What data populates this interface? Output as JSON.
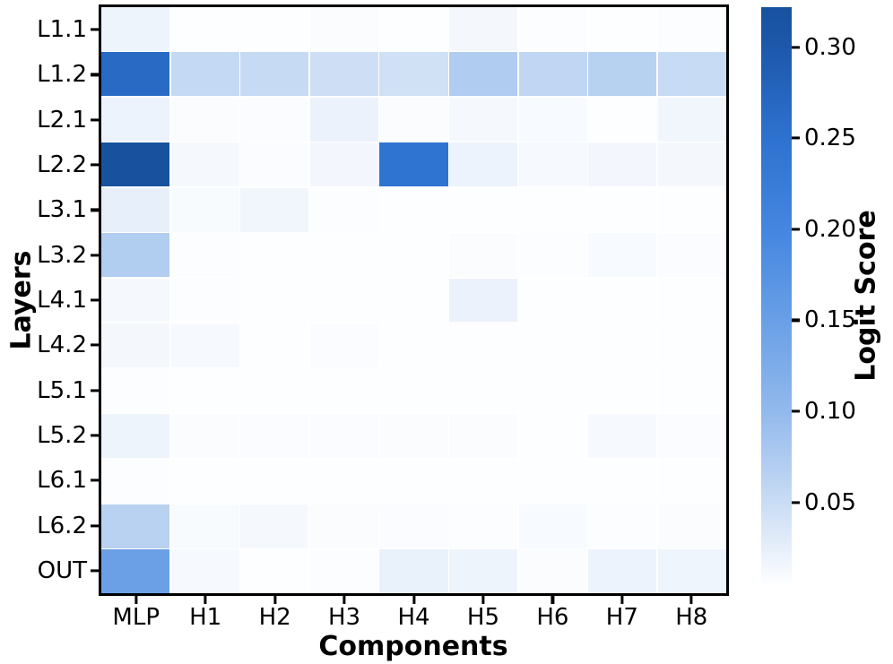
{
  "figure": {
    "background": "#ffffff"
  },
  "chart_data": {
    "type": "heatmap",
    "title": "",
    "xlabel": "Components",
    "ylabel": "Layers",
    "columns": [
      "MLP",
      "H1",
      "H2",
      "H3",
      "H4",
      "H5",
      "H6",
      "H7",
      "H8"
    ],
    "rows": [
      "L1.1",
      "L1.2",
      "L2.1",
      "L2.2",
      "L3.1",
      "L3.2",
      "L4.1",
      "L4.2",
      "L5.1",
      "L5.2",
      "L6.1",
      "L6.2",
      "OUT"
    ],
    "values": [
      [
        0.018,
        0.003,
        0.005,
        0.008,
        0.003,
        0.013,
        0.006,
        0.004,
        0.006
      ],
      [
        0.265,
        0.055,
        0.053,
        0.046,
        0.044,
        0.073,
        0.058,
        0.066,
        0.052
      ],
      [
        0.019,
        0.008,
        0.007,
        0.021,
        0.008,
        0.012,
        0.01,
        0.002,
        0.016
      ],
      [
        0.32,
        0.012,
        0.007,
        0.014,
        0.245,
        0.019,
        0.011,
        0.014,
        0.013
      ],
      [
        0.025,
        0.009,
        0.015,
        0.006,
        0.005,
        0.002,
        0.002,
        0.004,
        0.004
      ],
      [
        0.072,
        0.006,
        0.002,
        0.002,
        0.002,
        0.008,
        0.006,
        0.01,
        0.007
      ],
      [
        0.012,
        0.006,
        0.002,
        0.002,
        0.002,
        0.021,
        0.005,
        0.003,
        0.004
      ],
      [
        0.013,
        0.011,
        0.002,
        0.007,
        0.002,
        0.002,
        0.002,
        0.005,
        0.005
      ],
      [
        0.006,
        0.002,
        0.005,
        0.002,
        0.002,
        0.002,
        0.002,
        0.002,
        0.002
      ],
      [
        0.018,
        0.008,
        0.007,
        0.007,
        0.008,
        0.008,
        0.004,
        0.011,
        0.007
      ],
      [
        0.006,
        0.002,
        0.004,
        0.005,
        0.004,
        0.003,
        0.004,
        0.003,
        0.004
      ],
      [
        0.065,
        0.009,
        0.012,
        0.008,
        0.007,
        0.006,
        0.01,
        0.006,
        0.008
      ],
      [
        0.148,
        0.011,
        0.004,
        0.006,
        0.022,
        0.018,
        0.008,
        0.019,
        0.017
      ]
    ],
    "colorbar": {
      "label": "Logit Score",
      "tick_values": [
        0.3,
        0.25,
        0.2,
        0.15,
        0.1,
        0.05
      ],
      "tick_labels": [
        "0.30",
        "0.25",
        "0.20",
        "0.15",
        "0.10",
        "0.05"
      ],
      "vmin": 0.005,
      "vmax": 0.322
    },
    "colormap_stops": [
      {
        "v": 0.005,
        "color": "#fdfeff"
      },
      {
        "v": 0.05,
        "color": "#c9dcf4"
      },
      {
        "v": 0.1,
        "color": "#92b9ec"
      },
      {
        "v": 0.15,
        "color": "#699fe6"
      },
      {
        "v": 0.2,
        "color": "#4486e0"
      },
      {
        "v": 0.25,
        "color": "#2e72cf"
      },
      {
        "v": 0.3,
        "color": "#1d58ab"
      },
      {
        "v": 0.322,
        "color": "#17519e"
      }
    ],
    "layout": {
      "grid": false,
      "legend": false,
      "colorbar_position": "right"
    }
  }
}
